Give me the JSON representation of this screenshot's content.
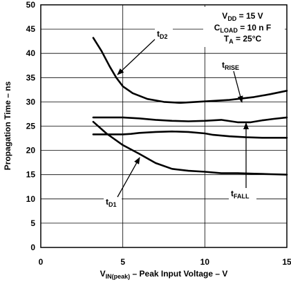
{
  "chart_data": {
    "type": "line",
    "xlabel": "V",
    "xlabel_sub": "IN(peak)",
    "xlabel_rest": " –  Peak Input Voltage – V",
    "ylabel": "Propagation Time – ns",
    "xlim": [
      0,
      15
    ],
    "ylim": [
      0,
      50
    ],
    "x_ticks": [
      "0",
      "5",
      "10",
      "15"
    ],
    "y_ticks": [
      "0",
      "5",
      "10",
      "15",
      "20",
      "25",
      "30",
      "35",
      "40",
      "45",
      "50"
    ],
    "grid": true,
    "conditions": {
      "vdd": {
        "main": "V",
        "sub": "DD",
        "rest": " = 15 V"
      },
      "cload": {
        "main": "C",
        "sub": "LOAD",
        "rest": " = 10 n F"
      },
      "ta": {
        "main": "T",
        "sub": "A",
        "rest": " = 25°C"
      }
    },
    "series": [
      {
        "name": "tD2",
        "label_main": "t",
        "label_sub": "D2",
        "x": [
          3.2,
          3.7,
          4.2,
          4.6,
          5.0,
          5.6,
          6.5,
          7.5,
          8.5,
          10.0,
          11.5,
          13.0,
          14.0,
          15.0
        ],
        "y": [
          43.2,
          40.5,
          37.3,
          35.0,
          33.2,
          31.8,
          30.6,
          30.0,
          29.8,
          30.1,
          30.4,
          31.0,
          31.6,
          32.3
        ]
      },
      {
        "name": "tRISE",
        "label_main": "t",
        "label_sub": "RISE",
        "x": [
          3.2,
          4.0,
          5.0,
          6.0,
          7.0,
          8.0,
          9.0,
          10.0,
          11.0,
          12.0,
          12.8,
          13.5,
          14.2,
          15.0
        ],
        "y": [
          26.8,
          26.8,
          26.8,
          26.6,
          26.3,
          26.1,
          26.0,
          26.1,
          26.3,
          25.8,
          25.8,
          26.2,
          26.5,
          26.8
        ]
      },
      {
        "name": "tFALL",
        "label_main": "t",
        "label_sub": "FALL",
        "x": [
          3.2,
          4.0,
          5.0,
          5.5,
          6.0,
          7.0,
          8.0,
          9.0,
          10.0,
          10.5,
          11.5,
          12.5,
          13.5,
          15.0
        ],
        "y": [
          23.3,
          23.3,
          23.3,
          23.4,
          23.6,
          23.8,
          23.9,
          23.8,
          23.5,
          23.2,
          22.9,
          22.7,
          22.6,
          22.6
        ]
      },
      {
        "name": "tD1",
        "label_main": "t",
        "label_sub": "D1",
        "x": [
          3.2,
          4.0,
          5.0,
          6.0,
          7.0,
          8.0,
          9.0,
          10.0,
          11.0,
          12.0,
          13.0,
          14.0,
          15.0
        ],
        "y": [
          25.9,
          23.5,
          21.1,
          19.3,
          17.4,
          16.2,
          15.8,
          15.6,
          15.3,
          15.3,
          15.2,
          15.1,
          15.0
        ]
      }
    ]
  }
}
